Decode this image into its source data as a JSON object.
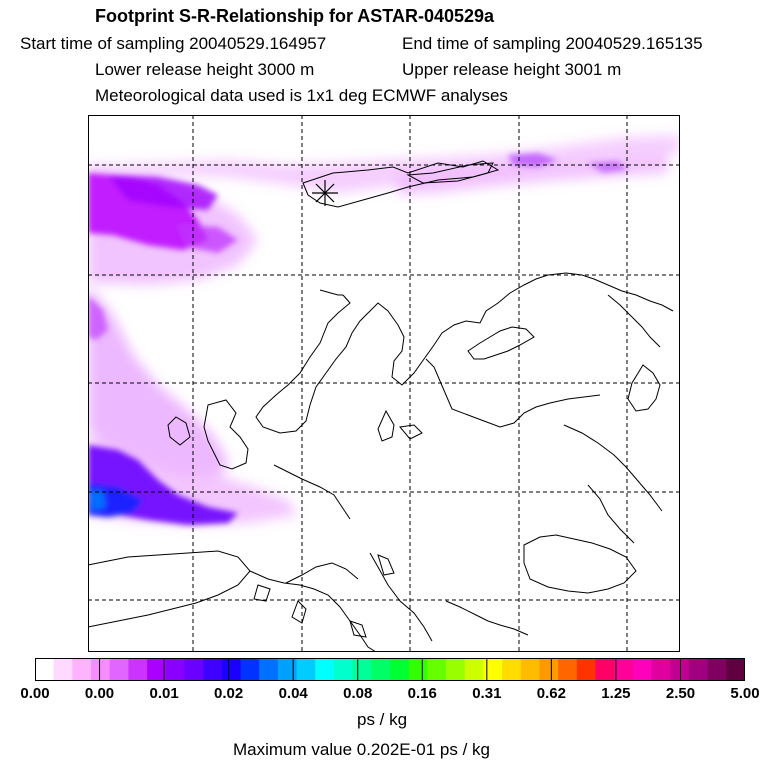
{
  "header": {
    "title": "Footprint S-R-Relationship for ASTAR-040529a",
    "start_time": "Start time of sampling 20040529.164957",
    "end_time": "End time of sampling 20040529.165135",
    "lower_height": "Lower release height 3000 m",
    "upper_height": "Upper release height 3001 m",
    "met_data": "Meteorological data used is 1x1 deg ECMWF analyses"
  },
  "map": {
    "marker": "release-point-asterisk",
    "plume_color": "#a000ff",
    "core_color": "#0030ff"
  },
  "colorbar": {
    "colors": [
      "#ffffff",
      "#ffd9ff",
      "#ffb3ff",
      "#f58cff",
      "#e066ff",
      "#cc33ff",
      "#aa00ff",
      "#8a00ff",
      "#6a00ff",
      "#4000ff",
      "#1a00ff",
      "#0033ff",
      "#0070ff",
      "#00a0ff",
      "#00ccff",
      "#00ffff",
      "#00ffcc",
      "#00ff99",
      "#00ff66",
      "#00ff33",
      "#33ff00",
      "#66ff00",
      "#99ff00",
      "#ccff00",
      "#ffff00",
      "#ffdd00",
      "#ffbb00",
      "#ff9900",
      "#ff6600",
      "#ff3300",
      "#ff0066",
      "#ff0099",
      "#ff00bb",
      "#e000a0",
      "#c00090",
      "#a00080",
      "#800060",
      "#600040"
    ],
    "ticks": [
      "0.00",
      "0.00",
      "0.01",
      "0.02",
      "0.04",
      "0.08",
      "0.16",
      "0.31",
      "0.62",
      "1.25",
      "2.50",
      "5.00"
    ],
    "units": "ps / kg",
    "max_value": "Maximum value  0.202E-01 ps / kg"
  }
}
